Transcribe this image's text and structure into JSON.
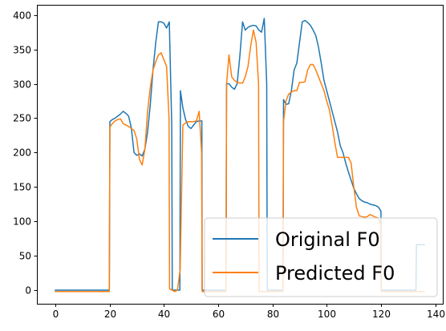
{
  "chart_data": {
    "type": "line",
    "title": "",
    "xlabel": "",
    "ylabel": "",
    "xlim": [
      -6.8,
      142.8
    ],
    "ylim": [
      -19.75,
      414.75
    ],
    "xticks": [
      0,
      20,
      40,
      60,
      80,
      100,
      120,
      140
    ],
    "yticks": [
      0,
      50,
      100,
      150,
      200,
      250,
      300,
      350,
      400
    ],
    "xtick_labels": [
      "0",
      "20",
      "40",
      "60",
      "80",
      "100",
      "120",
      "140"
    ],
    "ytick_labels": [
      "0",
      "50",
      "100",
      "150",
      "200",
      "250",
      "300",
      "350",
      "400"
    ],
    "grid": false,
    "legend_position": "lower-right",
    "series": [
      {
        "name": "Original F0",
        "color": "#1f77b4",
        "points": [
          [
            0,
            0
          ],
          [
            19.9,
            0
          ],
          [
            20.1,
            245
          ],
          [
            21,
            248
          ],
          [
            22,
            250
          ],
          [
            23,
            253
          ],
          [
            24,
            256
          ],
          [
            25,
            260
          ],
          [
            26,
            257
          ],
          [
            27,
            253
          ],
          [
            28,
            236
          ],
          [
            29,
            200
          ],
          [
            30,
            196
          ],
          [
            31,
            198
          ],
          [
            32,
            195
          ],
          [
            33,
            205
          ],
          [
            34,
            230
          ],
          [
            35,
            270
          ],
          [
            36,
            320
          ],
          [
            37,
            360
          ],
          [
            38,
            390
          ],
          [
            39,
            390
          ],
          [
            40,
            388
          ],
          [
            41,
            381
          ],
          [
            42,
            390
          ],
          [
            42.9,
            240
          ],
          [
            43.1,
            0
          ],
          [
            45.9,
            0
          ],
          [
            46.1,
            290
          ],
          [
            47,
            265
          ],
          [
            48,
            248
          ],
          [
            49,
            238
          ],
          [
            50,
            235
          ],
          [
            51,
            240
          ],
          [
            52,
            245
          ],
          [
            53,
            246
          ],
          [
            54,
            246
          ],
          [
            54.1,
            0
          ],
          [
            62.9,
            0
          ],
          [
            63.1,
            300
          ],
          [
            64,
            300
          ],
          [
            65,
            295
          ],
          [
            66,
            292
          ],
          [
            67,
            300
          ],
          [
            68,
            340
          ],
          [
            69,
            390
          ],
          [
            70,
            378
          ],
          [
            71,
            382
          ],
          [
            72,
            384
          ],
          [
            73,
            385
          ],
          [
            74,
            384
          ],
          [
            75,
            378
          ],
          [
            76,
            375
          ],
          [
            77,
            395
          ],
          [
            77.9,
            300
          ],
          [
            78.1,
            0
          ],
          [
            83.9,
            0
          ],
          [
            84.1,
            277
          ],
          [
            85,
            270
          ],
          [
            86,
            271
          ],
          [
            87,
            290
          ],
          [
            88,
            320
          ],
          [
            89,
            330
          ],
          [
            90,
            360
          ],
          [
            91,
            390
          ],
          [
            92,
            392
          ],
          [
            93,
            389
          ],
          [
            94,
            385
          ],
          [
            95,
            378
          ],
          [
            96,
            370
          ],
          [
            97,
            353
          ],
          [
            98,
            330
          ],
          [
            99,
            305
          ],
          [
            100,
            290
          ],
          [
            101,
            275
          ],
          [
            102,
            260
          ],
          [
            103,
            245
          ],
          [
            104,
            230
          ],
          [
            105,
            210
          ],
          [
            106,
            200
          ],
          [
            107,
            185
          ],
          [
            108,
            172
          ],
          [
            109,
            160
          ],
          [
            110,
            148
          ],
          [
            111,
            140
          ],
          [
            112,
            133
          ],
          [
            113,
            130
          ],
          [
            114,
            128
          ],
          [
            115,
            127
          ],
          [
            116,
            125
          ],
          [
            117,
            124
          ],
          [
            118,
            123
          ],
          [
            119,
            121
          ],
          [
            120,
            115
          ],
          [
            120.1,
            0
          ],
          [
            132.9,
            0
          ],
          [
            133.1,
            66
          ],
          [
            134,
            66
          ],
          [
            136,
            66
          ]
        ]
      },
      {
        "name": "Predicted F0",
        "color": "#ff7f0e",
        "points": [
          [
            0,
            -2
          ],
          [
            19.9,
            -2
          ],
          [
            20.1,
            237
          ],
          [
            21,
            242
          ],
          [
            22,
            246
          ],
          [
            23,
            248
          ],
          [
            24,
            249
          ],
          [
            25,
            242
          ],
          [
            26,
            240
          ],
          [
            27,
            238
          ],
          [
            28,
            235
          ],
          [
            29,
            232
          ],
          [
            30,
            220
          ],
          [
            31,
            190
          ],
          [
            32,
            182
          ],
          [
            33,
            205
          ],
          [
            34,
            260
          ],
          [
            35,
            295
          ],
          [
            36,
            320
          ],
          [
            37,
            332
          ],
          [
            38,
            342
          ],
          [
            39,
            345
          ],
          [
            40,
            335
          ],
          [
            41,
            325
          ],
          [
            41.9,
            250
          ],
          [
            42.1,
            2
          ],
          [
            43,
            0
          ],
          [
            44,
            -2
          ],
          [
            45,
            0
          ],
          [
            46,
            30
          ],
          [
            47,
            240
          ],
          [
            48,
            243
          ],
          [
            49,
            245
          ],
          [
            50,
            245
          ],
          [
            51,
            245
          ],
          [
            52,
            246
          ],
          [
            53,
            260
          ],
          [
            53.9,
            200
          ],
          [
            54.1,
            -2
          ],
          [
            62.9,
            -2
          ],
          [
            63.1,
            300
          ],
          [
            64,
            342
          ],
          [
            65,
            310
          ],
          [
            66,
            305
          ],
          [
            67,
            302
          ],
          [
            68,
            301
          ],
          [
            69,
            301
          ],
          [
            70,
            310
          ],
          [
            71,
            325
          ],
          [
            72,
            355
          ],
          [
            73,
            378
          ],
          [
            74,
            360
          ],
          [
            74.9,
            300
          ],
          [
            75.1,
            -2
          ],
          [
            83.9,
            -2
          ],
          [
            84.1,
            245
          ],
          [
            85,
            275
          ],
          [
            86,
            285
          ],
          [
            87,
            288
          ],
          [
            88,
            290
          ],
          [
            89,
            290
          ],
          [
            90,
            302
          ],
          [
            91,
            302
          ],
          [
            92,
            303
          ],
          [
            93,
            320
          ],
          [
            94,
            328
          ],
          [
            95,
            328
          ],
          [
            96,
            320
          ],
          [
            97,
            310
          ],
          [
            98,
            300
          ],
          [
            99,
            290
          ],
          [
            100,
            275
          ],
          [
            101,
            262
          ],
          [
            102,
            240
          ],
          [
            103,
            215
          ],
          [
            104,
            193
          ],
          [
            105,
            193
          ],
          [
            106,
            193
          ],
          [
            107,
            193
          ],
          [
            108,
            193
          ],
          [
            109,
            185
          ],
          [
            110,
            150
          ],
          [
            111,
            120
          ],
          [
            112,
            108
          ],
          [
            113,
            107
          ],
          [
            114,
            106
          ],
          [
            115,
            107
          ],
          [
            116,
            110
          ],
          [
            117,
            108
          ],
          [
            118,
            106
          ],
          [
            119,
            105
          ],
          [
            119.9,
            95
          ],
          [
            120.1,
            -2
          ],
          [
            136,
            -2
          ]
        ]
      }
    ]
  }
}
